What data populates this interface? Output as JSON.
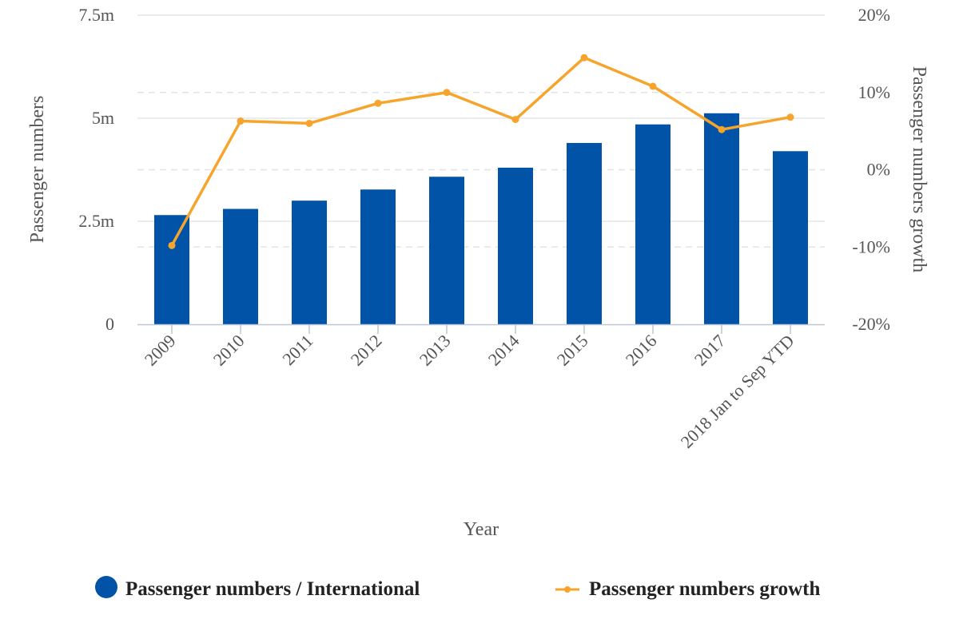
{
  "chart_data": {
    "type": "bar",
    "categories": [
      "2009",
      "2010",
      "2011",
      "2012",
      "2013",
      "2014",
      "2015",
      "2016",
      "2017",
      "2018 Jan to Sep YTD"
    ],
    "series": [
      {
        "name": "Passenger numbers / International",
        "type": "bar",
        "axis": "left",
        "values": [
          2.65,
          2.8,
          3.0,
          3.27,
          3.58,
          3.8,
          4.4,
          4.85,
          5.12,
          4.2
        ],
        "unit": "m",
        "color": "#0053a6"
      },
      {
        "name": "Passenger numbers growth",
        "type": "line",
        "axis": "right",
        "values": [
          -9.8,
          6.3,
          6.0,
          8.6,
          10.0,
          6.5,
          14.5,
          10.8,
          5.2,
          6.8
        ],
        "unit": "%",
        "color": "#f7a42d"
      }
    ],
    "xlabel": "Year",
    "ylabel": "Passenger numbers",
    "y2label": "Passenger numbers growth",
    "ylim": [
      0,
      7.5
    ],
    "y2lim": [
      -20,
      20
    ],
    "yticks": [
      "0",
      "2.5m",
      "5m",
      "7.5m"
    ],
    "y2ticks": [
      "-20%",
      "-10%",
      "0%",
      "10%",
      "20%"
    ],
    "grid": true,
    "legend_position": "bottom"
  }
}
